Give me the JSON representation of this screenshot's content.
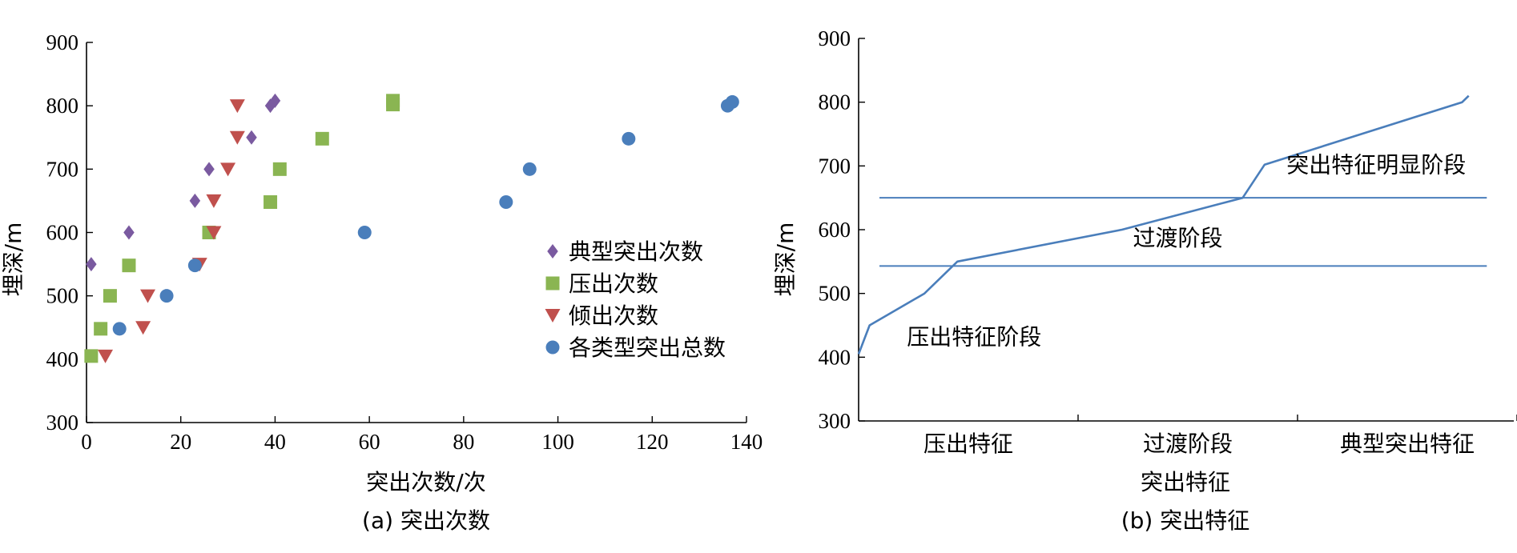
{
  "chart_data": [
    {
      "type": "scatter",
      "caption": "(a) 突出次数",
      "xlabel": "突出次数/次",
      "ylabel": "埋深/m",
      "xlim": [
        0,
        140
      ],
      "ylim": [
        300,
        900
      ],
      "xticks": [
        0,
        20,
        40,
        60,
        80,
        100,
        120,
        140
      ],
      "yticks": [
        300,
        400,
        500,
        600,
        700,
        800,
        900
      ],
      "legend_position": "right-middle",
      "series": [
        {
          "name": "典型突出次数",
          "marker": "diamond",
          "color": "#7a5aa0",
          "points": [
            [
              1,
              550
            ],
            [
              9,
              600
            ],
            [
              23,
              650
            ],
            [
              26,
              700
            ],
            [
              35,
              750
            ],
            [
              39,
              800
            ],
            [
              40,
              808
            ]
          ]
        },
        {
          "name": "压出次数",
          "marker": "square",
          "color": "#8ab552",
          "points": [
            [
              1,
              405
            ],
            [
              3,
              448
            ],
            [
              5,
              500
            ],
            [
              9,
              548
            ],
            [
              26,
              600
            ],
            [
              39,
              648
            ],
            [
              41,
              700
            ],
            [
              50,
              748
            ],
            [
              65,
              802
            ],
            [
              65,
              808
            ]
          ]
        },
        {
          "name": "倾出次数",
          "marker": "triangle-down",
          "color": "#c0504d",
          "points": [
            [
              4,
              405
            ],
            [
              12,
              450
            ],
            [
              13,
              500
            ],
            [
              24,
              550
            ],
            [
              27,
              600
            ],
            [
              27,
              650
            ],
            [
              30,
              700
            ],
            [
              32,
              750
            ],
            [
              32,
              800
            ]
          ]
        },
        {
          "name": "各类型突出总数",
          "marker": "circle",
          "color": "#4a7ebb",
          "points": [
            [
              7,
              448
            ],
            [
              17,
              500
            ],
            [
              23,
              548
            ],
            [
              59,
              600
            ],
            [
              89,
              648
            ],
            [
              94,
              700
            ],
            [
              115,
              748
            ],
            [
              136,
              800
            ],
            [
              137,
              806
            ]
          ]
        }
      ]
    },
    {
      "type": "line",
      "caption": "(b) 突出特征",
      "xlabel": "突出特征",
      "ylabel": "埋深/m",
      "ylim": [
        300,
        900
      ],
      "yticks": [
        300,
        400,
        500,
        600,
        700,
        800,
        900
      ],
      "categories": [
        "压出特征",
        "过渡阶段",
        "典型突出特征"
      ],
      "xlim": [
        0,
        3
      ],
      "line_color": "#4a7ebb",
      "line": [
        [
          -0.1,
          405
        ],
        [
          0.05,
          450
        ],
        [
          0.3,
          500
        ],
        [
          0.45,
          550
        ],
        [
          1.2,
          600
        ],
        [
          1.75,
          650
        ],
        [
          1.85,
          702
        ],
        [
          2.75,
          800
        ],
        [
          2.78,
          810
        ]
      ],
      "hlines": [
        {
          "y": 650,
          "from": 0,
          "to": 2.95
        },
        {
          "y": 543,
          "from": 0,
          "to": 2.95
        }
      ],
      "annotations": [
        {
          "text": "突出特征明显阶段",
          "x": 1.95,
          "y": 690
        },
        {
          "text": "过渡阶段",
          "x": 1.25,
          "y": 575
        },
        {
          "text": "压出特征阶段",
          "x": 0.22,
          "y": 420
        }
      ]
    }
  ]
}
